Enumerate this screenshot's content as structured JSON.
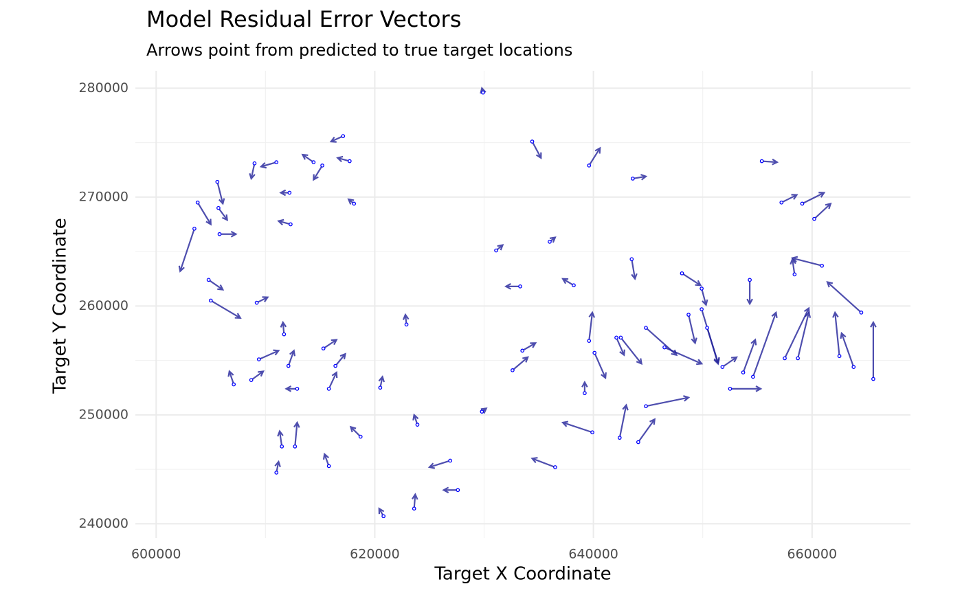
{
  "chart_data": {
    "type": "vector",
    "title": "Model Residual Error Vectors",
    "subtitle": "Arrows point from predicted to true target locations",
    "x_label": "Target X Coordinate",
    "y_label": "Target Y Coordinate",
    "xlim": [
      598100,
      669000
    ],
    "ylim": [
      238700,
      281600
    ],
    "xticks": [
      600000,
      620000,
      640000,
      660000
    ],
    "yticks": [
      240000,
      250000,
      260000,
      270000,
      280000
    ],
    "xminor": [
      610000,
      630000,
      650000
    ],
    "yminor": [
      245000,
      255000,
      265000,
      275000
    ],
    "grid": true,
    "arrow_color": "#22229a",
    "point_color": "#0000ff",
    "x": [
      603500,
      603800,
      605600,
      605700,
      605800,
      604800,
      605000,
      607100,
      608700,
      665600,
      664500,
      663800,
      662500,
      658700,
      657500,
      660900,
      659100,
      658400,
      652500,
      654600,
      653700,
      651800,
      649900,
      650400,
      646500,
      644800,
      644800,
      644100,
      642400,
      639900,
      636500,
      626900,
      627600,
      623600,
      620800,
      611000,
      611500,
      615800,
      618700,
      612700,
      615800,
      616400,
      615300,
      612900,
      612100,
      611700,
      609400,
      609200,
      611000,
      609000,
      612200,
      612300,
      614400,
      615200,
      617100,
      617700,
      618100,
      622900,
      620500,
      623900,
      629800,
      633300,
      631100,
      638200,
      639600,
      640100,
      642100,
      642500,
      639600,
      634400,
      629900,
      643600,
      655400,
      660200,
      657200,
      654300,
      649900,
      648100,
      648700,
      643500,
      636000,
      632600,
      633500,
      639200
    ],
    "y": [
      267100,
      269500,
      271400,
      269000,
      266600,
      262400,
      260500,
      252800,
      253200,
      253300,
      259400,
      254400,
      255400,
      255200,
      255200,
      263700,
      269400,
      262900,
      252400,
      253500,
      253900,
      254400,
      259700,
      258000,
      256200,
      258000,
      250800,
      247500,
      247900,
      248400,
      245200,
      245800,
      243100,
      241400,
      240700,
      244700,
      247100,
      245300,
      248000,
      247100,
      252400,
      254500,
      256100,
      252400,
      254500,
      257400,
      255100,
      260300,
      273200,
      273100,
      270400,
      267500,
      273200,
      272900,
      275600,
      273300,
      269400,
      258300,
      252500,
      249100,
      250300,
      261800,
      265100,
      261900,
      256800,
      255700,
      257100,
      257100,
      272900,
      275100,
      279600,
      271700,
      273300,
      268000,
      269500,
      262400,
      261600,
      263000,
      259200,
      264300,
      265900,
      254100,
      255900,
      252000
    ],
    "xend": [
      602200,
      605000,
      606100,
      606500,
      607300,
      606100,
      607700,
      606700,
      609800,
      665600,
      661400,
      662700,
      662100,
      659700,
      659700,
      658200,
      661100,
      658200,
      655300,
      656700,
      654800,
      653100,
      651400,
      651400,
      649900,
      647600,
      648700,
      645600,
      643000,
      637200,
      634400,
      625000,
      626300,
      623700,
      620400,
      611200,
      611300,
      615400,
      617800,
      612900,
      616500,
      617300,
      616500,
      611900,
      612600,
      611600,
      611200,
      610200,
      609600,
      608700,
      611400,
      611200,
      613400,
      614400,
      616000,
      616600,
      617600,
      622800,
      620700,
      623600,
      630200,
      632000,
      631700,
      637200,
      639900,
      641100,
      642800,
      644400,
      640600,
      635200,
      629800,
      644800,
      656800,
      661700,
      658600,
      654300,
      650300,
      649800,
      649300,
      643800,
      636500,
      634000,
      634700,
      639200
    ],
    "yend": [
      263200,
      267500,
      269400,
      267900,
      266600,
      261500,
      258900,
      254000,
      254000,
      258500,
      262200,
      257500,
      259400,
      259400,
      259800,
      264400,
      270400,
      264300,
      252400,
      259400,
      256900,
      255300,
      254700,
      254800,
      254700,
      255500,
      251600,
      249600,
      250900,
      249300,
      246000,
      245200,
      243100,
      242700,
      241400,
      245700,
      248500,
      246400,
      248900,
      249300,
      253900,
      255600,
      256900,
      252400,
      255900,
      258500,
      255900,
      260800,
      272800,
      271700,
      270400,
      267800,
      273900,
      271600,
      275100,
      273600,
      269800,
      259200,
      253500,
      250000,
      250600,
      261800,
      265600,
      262500,
      259400,
      253400,
      255500,
      254700,
      274500,
      273600,
      280000,
      271900,
      273200,
      269400,
      270200,
      260200,
      260100,
      261900,
      256600,
      262500,
      266300,
      255300,
      256600,
      253000
    ]
  }
}
